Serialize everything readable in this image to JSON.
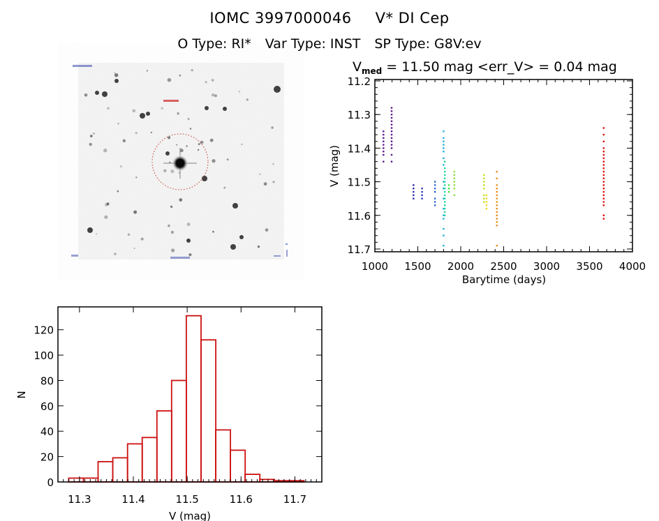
{
  "header": {
    "object_id": "IOMC 3997000046",
    "object_name": "V* DI Cep",
    "o_type": "O Type: RI*",
    "var_type": "Var Type: INST",
    "sp_type": "SP Type: G8V:ev"
  },
  "sky_image": {
    "circle_color": "#c0392b",
    "marker_color": "#cc2222"
  },
  "chart_data": [
    {
      "type": "scatter",
      "title_main": "V",
      "title_sub": "med",
      "title_rest": " = 11.50 mag <err_V> = 0.04 mag",
      "xlabel": "Barytime (days)",
      "ylabel": "V (mag)",
      "xlim": [
        1000,
        4000
      ],
      "ylim": [
        11.7,
        11.2
      ],
      "y_inverted": true,
      "xticks": [
        "1000",
        "1500",
        "2000",
        "2500",
        "3000",
        "3500",
        "4000"
      ],
      "xtick_values": [
        1000,
        1500,
        2000,
        2500,
        3000,
        3500,
        4000
      ],
      "yticks": [
        "11.2",
        "11.3",
        "11.4",
        "11.5",
        "11.6",
        "11.7"
      ],
      "ytick_values": [
        11.2,
        11.3,
        11.4,
        11.5,
        11.6,
        11.7
      ],
      "series": [
        {
          "name": "group-1100",
          "color": "#5a1a8a",
          "x": 1100,
          "values": [
            11.35,
            11.36,
            11.37,
            11.38,
            11.39,
            11.4,
            11.41,
            11.42,
            11.44
          ]
        },
        {
          "name": "group-1200",
          "color": "#5a1a8a",
          "x": 1195,
          "values": [
            11.28,
            11.29,
            11.3,
            11.31,
            11.32,
            11.33,
            11.34,
            11.35,
            11.36,
            11.37,
            11.38,
            11.39,
            11.4,
            11.42,
            11.44
          ]
        },
        {
          "name": "group-1450",
          "color": "#2a2aa0",
          "x": 1450,
          "values": [
            11.51,
            11.52,
            11.53,
            11.54,
            11.55
          ]
        },
        {
          "name": "group-1550",
          "color": "#2a3ab0",
          "x": 1550,
          "values": [
            11.52,
            11.53,
            11.54,
            11.55
          ]
        },
        {
          "name": "group-1700",
          "color": "#2a6ad0",
          "x": 1700,
          "values": [
            11.5,
            11.51,
            11.52,
            11.53,
            11.55,
            11.56,
            11.57
          ]
        },
        {
          "name": "group-1800a",
          "color": "#20b0d8",
          "x": 1800,
          "values": [
            11.35,
            11.37,
            11.38,
            11.39,
            11.4,
            11.41,
            11.43,
            11.45,
            11.5,
            11.52,
            11.55,
            11.58,
            11.6,
            11.61,
            11.64,
            11.66,
            11.69
          ]
        },
        {
          "name": "group-1800b",
          "color": "#20d8a0",
          "x": 1815,
          "values": [
            11.44,
            11.46,
            11.47,
            11.48,
            11.49,
            11.5,
            11.51,
            11.52,
            11.53,
            11.54,
            11.55,
            11.56,
            11.57,
            11.58,
            11.59,
            11.6
          ]
        },
        {
          "name": "group-1850",
          "color": "#40e040",
          "x": 1862,
          "values": [
            11.51,
            11.52,
            11.53
          ]
        },
        {
          "name": "group-1920",
          "color": "#90e040",
          "x": 1925,
          "values": [
            11.47,
            11.48,
            11.49,
            11.5,
            11.51,
            11.52,
            11.54
          ]
        },
        {
          "name": "group-2270",
          "color": "#c8e020",
          "x": 2270,
          "values": [
            11.48,
            11.49,
            11.5,
            11.51,
            11.52,
            11.54,
            11.55,
            11.56
          ]
        },
        {
          "name": "group-2300",
          "color": "#f0d820",
          "x": 2300,
          "values": [
            11.54,
            11.55,
            11.56,
            11.57,
            11.58
          ]
        },
        {
          "name": "group-2420",
          "color": "#e89020",
          "x": 2420,
          "values": [
            11.47,
            11.49,
            11.51,
            11.52,
            11.53,
            11.54,
            11.55,
            11.56,
            11.57,
            11.58,
            11.59,
            11.6,
            11.61,
            11.62,
            11.63,
            11.69
          ]
        },
        {
          "name": "group-3660",
          "color": "#dd1111",
          "x": 3665,
          "values": [
            11.34,
            11.36,
            11.38,
            11.4,
            11.41,
            11.42,
            11.43,
            11.44,
            11.45,
            11.46,
            11.47,
            11.48,
            11.49,
            11.5,
            11.51,
            11.52,
            11.53,
            11.54,
            11.55,
            11.56,
            11.57,
            11.6,
            11.61
          ]
        }
      ]
    },
    {
      "type": "bar",
      "subtype": "histogram",
      "xlabel": "V (mag)",
      "ylabel": "N",
      "xlim": [
        11.26,
        11.75
      ],
      "ylim": [
        0,
        138
      ],
      "xticks": [
        "11.3",
        "11.4",
        "11.5",
        "11.6",
        "11.7"
      ],
      "xtick_values": [
        11.3,
        11.4,
        11.5,
        11.6,
        11.7
      ],
      "yticks": [
        "0",
        "20",
        "40",
        "60",
        "80",
        "100",
        "120"
      ],
      "ytick_values": [
        0,
        20,
        40,
        60,
        80,
        100,
        120
      ],
      "bar_color": "#cc1111",
      "bin_start": 11.28,
      "bin_width": 0.0273,
      "values": [
        3,
        3,
        16,
        19,
        30,
        35,
        56,
        80,
        131,
        112,
        41,
        25,
        6,
        2,
        1,
        1
      ]
    }
  ]
}
